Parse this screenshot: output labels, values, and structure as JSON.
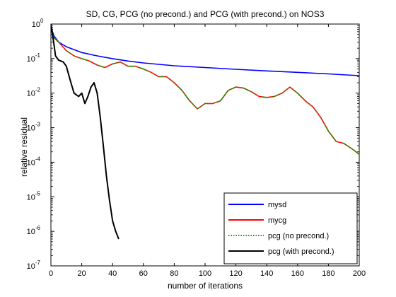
{
  "chart_data": {
    "type": "line",
    "title": "SD, CG, PCG (no precond.) and PCG (with precond.) on NOS3",
    "xlabel": "number of iterations",
    "ylabel": "relative residual",
    "xlim": [
      0,
      200
    ],
    "ylim": [
      1e-07,
      1
    ],
    "yscale": "log",
    "grid": false,
    "legend_position": "bottom-right",
    "x_ticks": [
      "0",
      "20",
      "40",
      "60",
      "80",
      "100",
      "120",
      "140",
      "160",
      "180",
      "200"
    ],
    "x_tick_values": [
      0,
      20,
      40,
      60,
      80,
      100,
      120,
      140,
      160,
      180,
      200
    ],
    "y_ticks": [
      {
        "value": 1e-07,
        "mantissa": "10",
        "exp": "-7"
      },
      {
        "value": 1e-06,
        "mantissa": "10",
        "exp": "-6"
      },
      {
        "value": 1e-05,
        "mantissa": "10",
        "exp": "-5"
      },
      {
        "value": 0.0001,
        "mantissa": "10",
        "exp": "-4"
      },
      {
        "value": 0.001,
        "mantissa": "10",
        "exp": "-3"
      },
      {
        "value": 0.01,
        "mantissa": "10",
        "exp": "-2"
      },
      {
        "value": 0.1,
        "mantissa": "10",
        "exp": "-1"
      },
      {
        "value": 1,
        "mantissa": "10",
        "exp": "0"
      }
    ],
    "series": [
      {
        "name": "mysd",
        "color": "#0000ff",
        "style": "solid",
        "x": [
          0,
          1,
          2,
          5,
          10,
          20,
          30,
          40,
          50,
          60,
          80,
          100,
          120,
          140,
          160,
          180,
          200
        ],
        "y": [
          1.0,
          0.6,
          0.45,
          0.3,
          0.22,
          0.15,
          0.12,
          0.1,
          0.085,
          0.075,
          0.062,
          0.055,
          0.049,
          0.044,
          0.04,
          0.036,
          0.032
        ]
      },
      {
        "name": "mycg",
        "color": "#ff0000",
        "style": "solid",
        "x": [
          0,
          1,
          2,
          5,
          10,
          15,
          20,
          25,
          30,
          35,
          40,
          45,
          50,
          55,
          60,
          65,
          70,
          75,
          80,
          85,
          90,
          95,
          100,
          105,
          110,
          115,
          120,
          125,
          130,
          135,
          140,
          145,
          150,
          155,
          160,
          165,
          170,
          175,
          180,
          185,
          190,
          195,
          200
        ],
        "y": [
          1.0,
          0.5,
          0.4,
          0.3,
          0.17,
          0.12,
          0.1,
          0.085,
          0.065,
          0.055,
          0.07,
          0.08,
          0.06,
          0.06,
          0.05,
          0.04,
          0.03,
          0.03,
          0.02,
          0.012,
          0.006,
          0.0035,
          0.005,
          0.005,
          0.006,
          0.012,
          0.015,
          0.014,
          0.011,
          0.008,
          0.0075,
          0.008,
          0.01,
          0.015,
          0.01,
          0.006,
          0.004,
          0.002,
          0.0008,
          0.0004,
          0.00035,
          0.00025,
          0.00017
        ]
      },
      {
        "name": "pcg (no precond.)",
        "color": "#00aa00",
        "style": "dotted",
        "x": [
          0,
          1,
          2,
          5,
          10,
          15,
          20,
          25,
          30,
          35,
          40,
          45,
          50,
          55,
          60,
          65,
          70,
          75,
          80,
          85,
          90,
          95,
          100,
          105,
          110,
          115,
          120,
          125,
          130,
          135,
          140,
          145,
          150,
          155,
          160,
          165,
          170,
          175,
          180,
          185,
          190,
          195,
          200
        ],
        "y": [
          1.0,
          0.5,
          0.4,
          0.3,
          0.17,
          0.12,
          0.1,
          0.085,
          0.065,
          0.055,
          0.07,
          0.08,
          0.06,
          0.06,
          0.05,
          0.04,
          0.03,
          0.03,
          0.02,
          0.012,
          0.006,
          0.0035,
          0.005,
          0.005,
          0.006,
          0.012,
          0.015,
          0.014,
          0.011,
          0.008,
          0.0075,
          0.008,
          0.01,
          0.015,
          0.01,
          0.006,
          0.004,
          0.002,
          0.0008,
          0.0004,
          0.00035,
          0.00025,
          0.00017
        ]
      },
      {
        "name": "pcg (with precond.)",
        "color": "#000000",
        "style": "solid",
        "x": [
          0,
          1,
          2,
          3,
          5,
          8,
          10,
          13,
          15,
          18,
          20,
          22,
          24,
          26,
          28,
          30,
          32,
          34,
          36,
          38,
          40,
          42,
          44
        ],
        "y": [
          1.0,
          0.5,
          0.25,
          0.12,
          0.09,
          0.08,
          0.06,
          0.02,
          0.01,
          0.008,
          0.01,
          0.005,
          0.008,
          0.015,
          0.02,
          0.01,
          0.002,
          0.0003,
          4e-05,
          8e-06,
          2e-06,
          1e-06,
          6e-07
        ]
      }
    ]
  }
}
